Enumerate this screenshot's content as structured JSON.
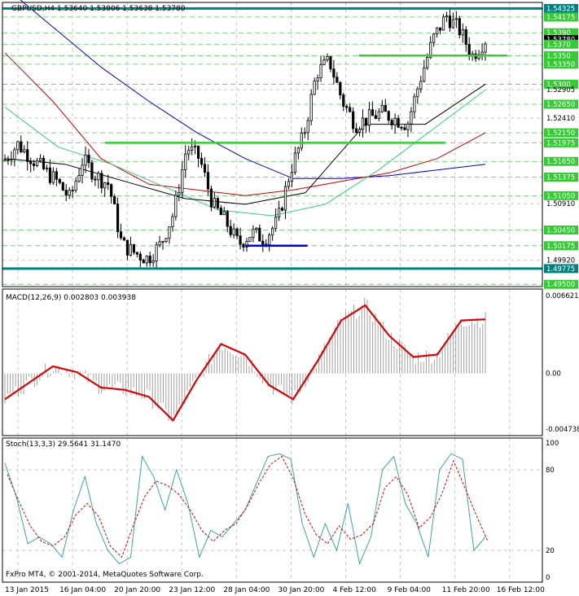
{
  "main_panel": {
    "header": "GBPUSD,H4  1.53640 1.53806 1.53638 1.53780",
    "price_labels": [
      {
        "value": "1.54325",
        "kind": "boxed-teal"
      },
      {
        "value": "1.54175",
        "kind": "boxed-green"
      },
      {
        "value": "1.5390",
        "kind": "boxed-green"
      },
      {
        "value": "1.53780",
        "kind": "boxed-black"
      },
      {
        "value": "1.5370",
        "kind": "boxed-green"
      },
      {
        "value": "1.5350",
        "kind": "boxed-green"
      },
      {
        "value": "1.53350",
        "kind": "boxed-green"
      },
      {
        "value": "1.5300",
        "kind": "boxed-green"
      },
      {
        "value": "1.52905",
        "kind": "plain"
      },
      {
        "value": "1.52650",
        "kind": "boxed-green"
      },
      {
        "value": "1.52410",
        "kind": "plain"
      },
      {
        "value": "1.52150",
        "kind": "boxed-green"
      },
      {
        "value": "1.51975",
        "kind": "boxed-green"
      },
      {
        "value": "1.51650",
        "kind": "boxed-green"
      },
      {
        "value": "1.51375",
        "kind": "boxed-green"
      },
      {
        "value": "1.51050",
        "kind": "boxed-green"
      },
      {
        "value": "1.50910",
        "kind": "plain"
      },
      {
        "value": "1.50450",
        "kind": "boxed-green"
      },
      {
        "value": "1.50175",
        "kind": "boxed-green"
      },
      {
        "value": "1.49920",
        "kind": "plain"
      },
      {
        "value": "1.49775",
        "kind": "boxed-teal"
      },
      {
        "value": "1.49500",
        "kind": "boxed-green"
      }
    ]
  },
  "macd_panel": {
    "header": "MACD(12,26,9) 0.002803 0.003938",
    "axis_labels": [
      "0.006621",
      "0.00",
      "-0.004738"
    ]
  },
  "stoch_panel": {
    "header": "Stoch(13,3,3) 29.5641 31.1470",
    "axis_labels": [
      "100",
      "80",
      "20",
      "0"
    ],
    "copyright": "FxPro MT4, © 2001-2014, MetaQuotes Software Corp."
  },
  "time_axis": [
    "13 Jan 2015",
    "16 Jan 04:00",
    "20 Jan 20:00",
    "23 Jan 12:00",
    "28 Jan 04:00",
    "30 Jan 20:00",
    "4 Feb 12:00",
    "9 Feb 04:00",
    "11 Feb 20:00",
    "16 Feb 12:00"
  ],
  "chart_data": [
    {
      "type": "candlestick",
      "title": "GBPUSD,H4",
      "ohlc_current": {
        "open": 1.5364,
        "high": 1.53806,
        "low": 1.53638,
        "close": 1.5378
      },
      "ylim": [
        1.4946,
        1.5443
      ],
      "x": [
        "13 Jan 2015",
        "16 Jan 04:00",
        "20 Jan 20:00",
        "23 Jan 12:00",
        "28 Jan 04:00",
        "30 Jan 20:00",
        "4 Feb 12:00",
        "9 Feb 04:00",
        "11 Feb 20:00",
        "16 Feb 12:00"
      ],
      "close_path": [
        1.5168,
        1.5195,
        1.5172,
        1.515,
        1.513,
        1.51,
        1.5168,
        1.514,
        1.5125,
        1.502,
        1.5005,
        1.4995,
        1.502,
        1.5075,
        1.519,
        1.517,
        1.509,
        1.506,
        1.502,
        1.504,
        1.503,
        1.506,
        1.515,
        1.521,
        1.532,
        1.534,
        1.527,
        1.523,
        1.524,
        1.525,
        1.524,
        1.523,
        1.531,
        1.538,
        1.542,
        1.5395,
        1.535,
        1.5378
      ],
      "horizontal_levels": [
        {
          "price": 1.54325,
          "color": "#00807f"
        },
        {
          "price": 1.49775,
          "color": "#00807f"
        },
        {
          "price": 1.535,
          "color": "#33cc33",
          "from": "4 Feb",
          "to": "16 Feb 12:00"
        },
        {
          "price": 1.51975,
          "color": "#33cc33",
          "from": "20 Jan",
          "to": "11 Feb 20:00"
        },
        {
          "price": 1.50175,
          "color": "#0000cc",
          "from": "28 Jan 04:00",
          "to": "30 Jan 20:00"
        }
      ],
      "moving_averages": [
        {
          "color": "#0000cc",
          "path": [
            1.547,
            1.54,
            1.533,
            1.527,
            1.5215,
            1.517,
            1.5135,
            1.5135,
            1.514,
            1.515,
            1.516
          ]
        },
        {
          "color": "#cc0000",
          "path": [
            1.5355,
            1.527,
            1.517,
            1.5125,
            1.5115,
            1.5105,
            1.5115,
            1.513,
            1.5145,
            1.517,
            1.5215
          ]
        },
        {
          "color": "#33cc88",
          "path": [
            1.526,
            1.519,
            1.516,
            1.512,
            1.508,
            1.507,
            1.509,
            1.515,
            1.522,
            1.529
          ]
        },
        {
          "color": "#000000",
          "path": [
            1.517,
            1.516,
            1.513,
            1.51,
            1.509,
            1.511,
            1.523,
            1.523,
            1.53
          ]
        }
      ]
    },
    {
      "type": "histogram+line",
      "name": "MACD(12,26,9)",
      "values": [
        0.002803,
        0.003938
      ],
      "ylim": [
        -0.004738,
        0.006621
      ],
      "signal_path": [
        -0.0022,
        -0.0008,
        0.0006,
        0.0001,
        -0.0012,
        -0.0014,
        -0.002,
        -0.004,
        -0.0005,
        0.0025,
        0.0016,
        -0.001,
        -0.0022,
        0.001,
        0.0045,
        0.0058,
        0.0032,
        0.0014,
        0.0016,
        0.0045,
        0.0046
      ]
    },
    {
      "type": "line",
      "name": "Stoch(13,3,3)",
      "values": [
        29.5641,
        31.147
      ],
      "ylim": [
        0,
        100
      ],
      "levels": [
        20,
        80
      ],
      "main_path": [
        85,
        60,
        25,
        30,
        25,
        15,
        50,
        75,
        40,
        20,
        10,
        15,
        90,
        75,
        50,
        80,
        55,
        15,
        35,
        30,
        40,
        50,
        70,
        90,
        92,
        88,
        40,
        15,
        40,
        20,
        55,
        10,
        30,
        80,
        90,
        55,
        40,
        15,
        80,
        92,
        88,
        20,
        30
      ]
    }
  ]
}
